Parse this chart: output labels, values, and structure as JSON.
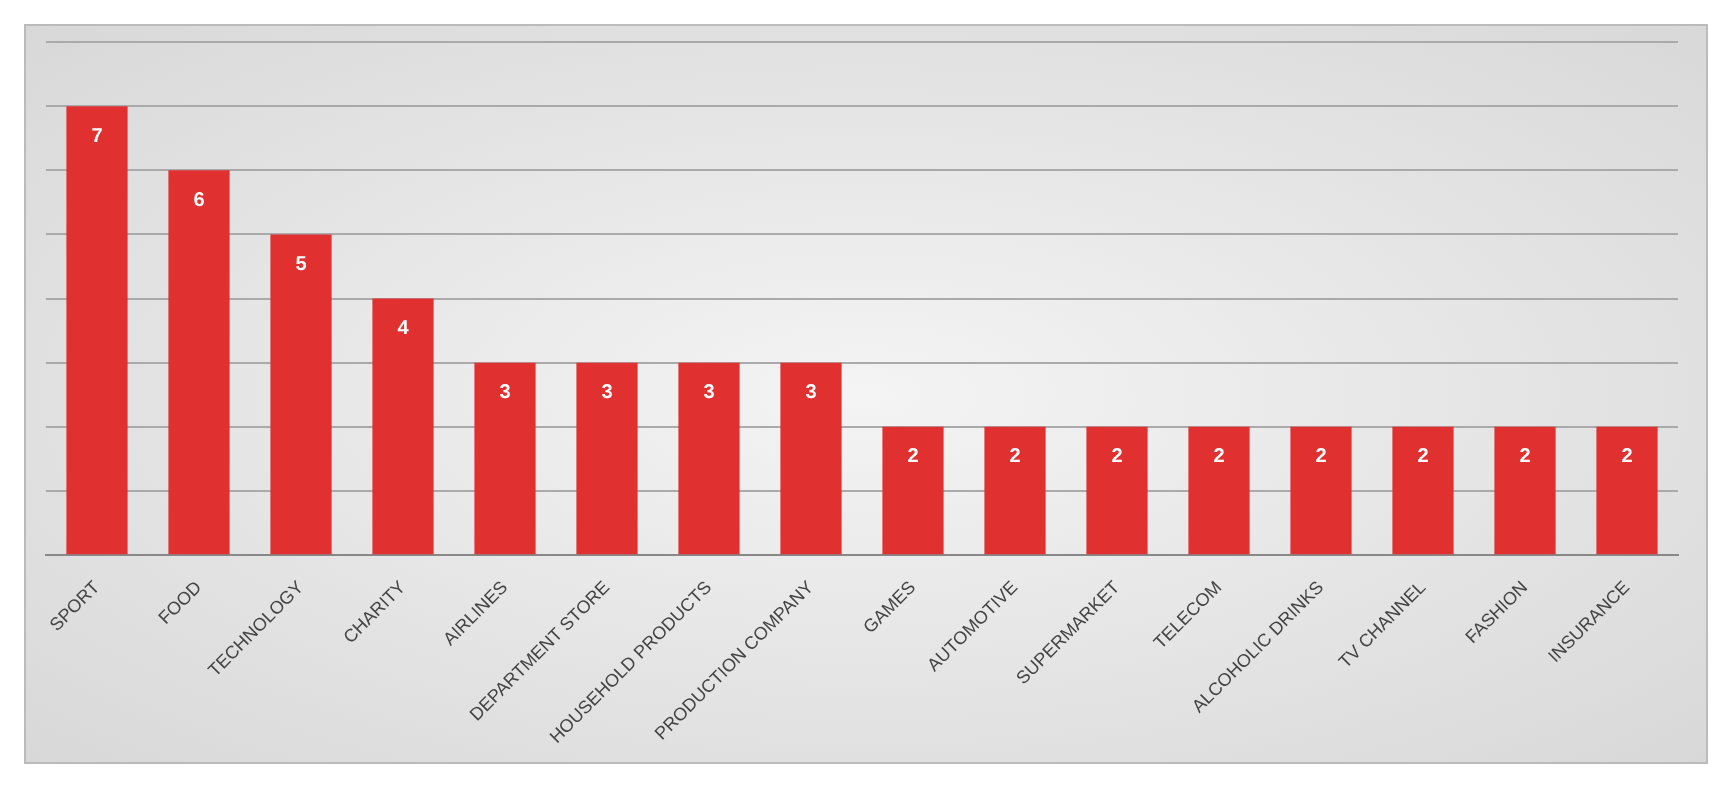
{
  "chart_data": {
    "type": "bar",
    "categories": [
      "SPORT",
      "FOOD",
      "TECHNOLOGY",
      "CHARITY",
      "AIRLINES",
      "DEPARTMENT STORE",
      "HOUSEHOLD PRODUCTS",
      "PRODUCTION COMPANY",
      "GAMES",
      "AUTOMOTIVE",
      "SUPERMARKET",
      "TELECOM",
      "ALCOHOLIC DRINKS",
      "TV CHANNEL",
      "FASHION",
      "INSURANCE"
    ],
    "values": [
      7,
      6,
      5,
      4,
      3,
      3,
      3,
      3,
      2,
      2,
      2,
      2,
      2,
      2,
      2,
      2
    ],
    "color": "#e03030",
    "ylim": [
      0,
      8
    ],
    "yticks": [
      {
        "value": 0,
        "label": null
      },
      {
        "value": 1,
        "label": null
      },
      {
        "value": 2,
        "label": null
      },
      {
        "value": 3,
        "label": null
      },
      {
        "value": 4,
        "label": null
      },
      {
        "value": 5,
        "label": null
      },
      {
        "value": 6,
        "label": null
      },
      {
        "value": 7,
        "label": null
      },
      {
        "value": 8,
        "label": null
      }
    ],
    "tick_labels": "x",
    "grid": "y",
    "data_labels": true,
    "legend": false
  }
}
